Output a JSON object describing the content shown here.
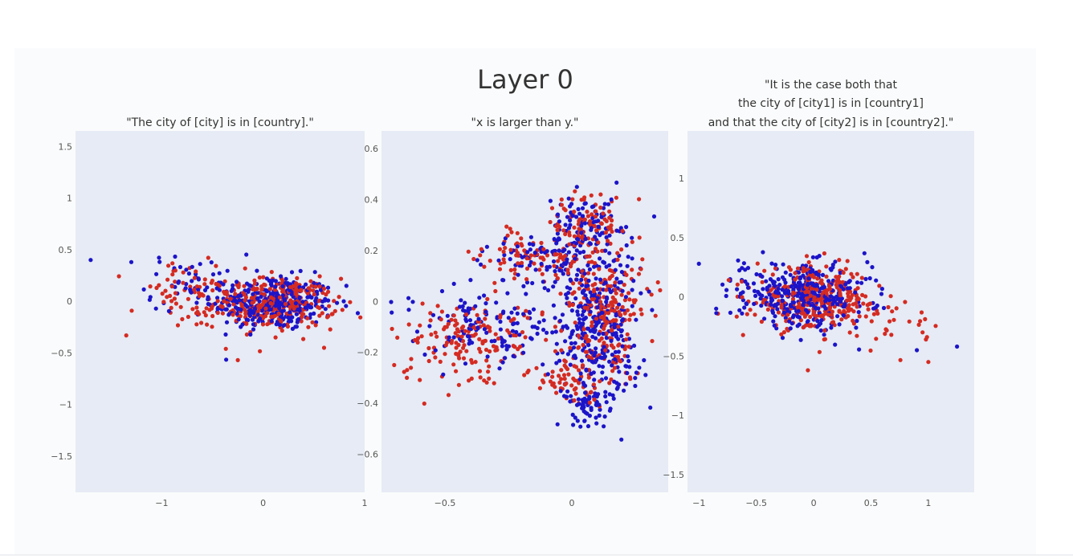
{
  "figure": {
    "title": "Layer 0"
  },
  "colors": {
    "plot_bg": "#e6ebf5",
    "series_blue": "#1c14c8",
    "series_red": "#d42b22",
    "tick_text": "#555555",
    "title_text": "#333333"
  },
  "chart_data": [
    {
      "type": "scatter",
      "title": "\"The city of [city] is in [country].\"",
      "title_lines": [
        "\"The city of [city] is in [country].\""
      ],
      "xlim": [
        -1.85,
        1.0
      ],
      "ylim": [
        -1.85,
        1.65
      ],
      "xticks": [
        -1,
        0,
        1
      ],
      "xtick_labels": [
        "−1",
        "0",
        "1"
      ],
      "yticks": [
        1.5,
        1,
        0.5,
        0,
        -0.5,
        -1,
        -1.5
      ],
      "ytick_labels": [
        "1.5",
        "1",
        "0.5",
        "0",
        "−0.5",
        "−1",
        "−1.5"
      ],
      "grid": false,
      "legend": "none",
      "series": [
        {
          "color": "blue",
          "clusters": [
            {
              "cx": 0.1,
              "cy": -0.02,
              "sx": 0.3,
              "sy": 0.13,
              "n": 320
            },
            {
              "cx": -0.65,
              "cy": 0.18,
              "sx": 0.25,
              "sy": 0.14,
              "n": 50
            }
          ],
          "points": [
            [
              -1.7,
              0.4
            ],
            [
              -1.3,
              0.38
            ],
            [
              0.82,
              0.15
            ]
          ]
        },
        {
          "color": "red",
          "clusters": [
            {
              "cx": 0.12,
              "cy": -0.02,
              "sx": 0.3,
              "sy": 0.12,
              "n": 300
            },
            {
              "cx": -0.75,
              "cy": 0.05,
              "sx": 0.28,
              "sy": 0.17,
              "n": 70
            }
          ],
          "points": [
            [
              -1.35,
              -0.33
            ],
            [
              -0.25,
              -0.57
            ],
            [
              0.6,
              -0.45
            ]
          ]
        }
      ]
    },
    {
      "type": "scatter",
      "title": "\"x is larger than y.\"",
      "title_lines": [
        "\"x is larger than y.\""
      ],
      "xlim": [
        -0.75,
        0.38
      ],
      "ylim": [
        -0.75,
        0.67
      ],
      "xticks": [
        -0.5,
        0
      ],
      "xtick_labels": [
        "−0.5",
        "0"
      ],
      "yticks": [
        0.6,
        0.4,
        0.2,
        0,
        -0.2,
        -0.4,
        -0.6
      ],
      "ytick_labels": [
        "0.6",
        "0.4",
        "0.2",
        "0",
        "−0.2",
        "−0.4",
        "−0.6"
      ],
      "grid": false,
      "legend": "none",
      "series": [
        {
          "color": "blue",
          "clusters": [
            {
              "cx": 0.1,
              "cy": -0.1,
              "sx": 0.09,
              "sy": 0.14,
              "n": 320
            },
            {
              "cx": 0.05,
              "cy": 0.3,
              "sx": 0.07,
              "sy": 0.07,
              "n": 100
            },
            {
              "cx": -0.35,
              "cy": -0.1,
              "sx": 0.14,
              "sy": 0.07,
              "n": 120
            },
            {
              "cx": -0.1,
              "cy": 0.16,
              "sx": 0.12,
              "sy": 0.05,
              "n": 90
            },
            {
              "cx": 0.07,
              "cy": -0.4,
              "sx": 0.06,
              "sy": 0.06,
              "n": 60
            }
          ],
          "points": [
            [
              0.02,
              0.45
            ],
            [
              0.05,
              -0.47
            ]
          ]
        },
        {
          "color": "red",
          "clusters": [
            {
              "cx": 0.12,
              "cy": -0.05,
              "sx": 0.08,
              "sy": 0.12,
              "n": 230
            },
            {
              "cx": 0.07,
              "cy": 0.3,
              "sx": 0.07,
              "sy": 0.06,
              "n": 90
            },
            {
              "cx": -0.4,
              "cy": -0.15,
              "sx": 0.14,
              "sy": 0.08,
              "n": 160
            },
            {
              "cx": -0.15,
              "cy": 0.18,
              "sx": 0.12,
              "sy": 0.05,
              "n": 90
            },
            {
              "cx": 0.0,
              "cy": -0.32,
              "sx": 0.08,
              "sy": 0.06,
              "n": 60
            }
          ],
          "points": [
            [
              -0.7,
              -0.25
            ],
            [
              -0.65,
              -0.3
            ]
          ]
        }
      ]
    },
    {
      "type": "scatter",
      "title": "\"It is the case both that the city of [city1] is in [country1] and that the city of [city2] is in [country2].\"",
      "title_lines": [
        "\"It is the case both that",
        "the city of [city1] is in [country1]",
        "and that the city of [city2] is in [country2].\""
      ],
      "xlim": [
        -1.1,
        1.4
      ],
      "ylim": [
        -1.65,
        1.4
      ],
      "xticks": [
        -1,
        -0.5,
        0,
        0.5,
        1
      ],
      "xtick_labels": [
        "−1",
        "−0.5",
        "0",
        "0.5",
        "1"
      ],
      "yticks": [
        1,
        0.5,
        0,
        -0.5,
        -1,
        -1.5
      ],
      "ytick_labels": [
        "1",
        "0.5",
        "0",
        "−0.5",
        "−1",
        "−1.5"
      ],
      "grid": false,
      "legend": "none",
      "series": [
        {
          "color": "blue",
          "clusters": [
            {
              "cx": -0.05,
              "cy": 0.0,
              "sx": 0.27,
              "sy": 0.13,
              "n": 320
            },
            {
              "cx": -0.55,
              "cy": 0.08,
              "sx": 0.15,
              "sy": 0.12,
              "n": 40
            }
          ],
          "points": [
            [
              1.25,
              -0.42
            ],
            [
              0.9,
              -0.45
            ],
            [
              -0.85,
              -0.1
            ]
          ]
        },
        {
          "color": "red",
          "clusters": [
            {
              "cx": 0.0,
              "cy": -0.02,
              "sx": 0.25,
              "sy": 0.13,
              "n": 300
            },
            {
              "cx": 0.6,
              "cy": -0.2,
              "sx": 0.2,
              "sy": 0.12,
              "n": 40
            }
          ],
          "points": [
            [
              1.0,
              -0.55
            ],
            [
              0.95,
              -0.3
            ],
            [
              -0.05,
              -0.62
            ]
          ]
        }
      ]
    }
  ]
}
